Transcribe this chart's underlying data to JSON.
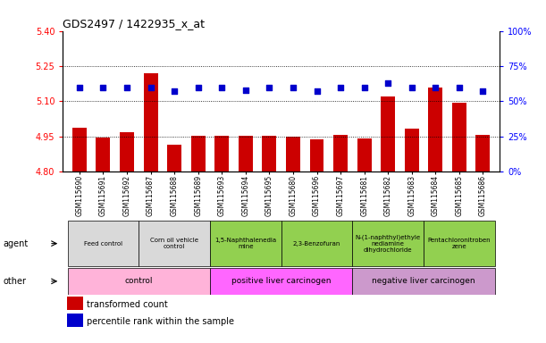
{
  "title": "GDS2497 / 1422935_x_at",
  "samples": [
    "GSM115690",
    "GSM115691",
    "GSM115692",
    "GSM115687",
    "GSM115688",
    "GSM115689",
    "GSM115693",
    "GSM115694",
    "GSM115695",
    "GSM115680",
    "GSM115696",
    "GSM115697",
    "GSM115681",
    "GSM115682",
    "GSM115683",
    "GSM115684",
    "GSM115685",
    "GSM115686"
  ],
  "bar_values": [
    4.985,
    4.943,
    4.966,
    5.22,
    4.916,
    4.952,
    4.954,
    4.953,
    4.954,
    4.949,
    4.937,
    4.956,
    4.942,
    5.12,
    4.983,
    5.16,
    5.095,
    4.955
  ],
  "percentile_values": [
    60,
    60,
    60,
    60,
    57,
    60,
    60,
    58,
    60,
    60,
    57,
    60,
    60,
    63,
    60,
    60,
    60,
    57
  ],
  "ylim": [
    4.8,
    5.4
  ],
  "yticks": [
    4.8,
    4.95,
    5.1,
    5.25,
    5.4
  ],
  "y2lim": [
    0,
    100
  ],
  "y2ticks": [
    0,
    25,
    50,
    75,
    100
  ],
  "bar_color": "#cc0000",
  "dot_color": "#0000cc",
  "agent_groups": [
    {
      "label": "Feed control",
      "start": 0,
      "end": 3,
      "color": "#d9d9d9"
    },
    {
      "label": "Corn oil vehicle\ncontrol",
      "start": 3,
      "end": 6,
      "color": "#d9d9d9"
    },
    {
      "label": "1,5-Naphthalenedia\nmine",
      "start": 6,
      "end": 9,
      "color": "#92d050"
    },
    {
      "label": "2,3-Benzofuran",
      "start": 9,
      "end": 12,
      "color": "#92d050"
    },
    {
      "label": "N-(1-naphthyl)ethyle\nnediamine\ndihydrochloride",
      "start": 12,
      "end": 15,
      "color": "#92d050"
    },
    {
      "label": "Pentachloronitroben\nzene",
      "start": 15,
      "end": 18,
      "color": "#92d050"
    }
  ],
  "other_groups": [
    {
      "label": "control",
      "start": 0,
      "end": 6,
      "color": "#ffb3d9"
    },
    {
      "label": "positive liver carcinogen",
      "start": 6,
      "end": 12,
      "color": "#ff66ff"
    },
    {
      "label": "negative liver carcinogen",
      "start": 12,
      "end": 18,
      "color": "#cc99cc"
    }
  ],
  "agent_label": "agent",
  "other_label": "other",
  "legend_items": [
    {
      "label": "transformed count",
      "color": "#cc0000"
    },
    {
      "label": "percentile rank within the sample",
      "color": "#0000cc"
    }
  ],
  "dotted_lines": [
    4.95,
    5.1,
    5.25
  ],
  "bar_width": 0.6,
  "bg_color": "#ffffff"
}
